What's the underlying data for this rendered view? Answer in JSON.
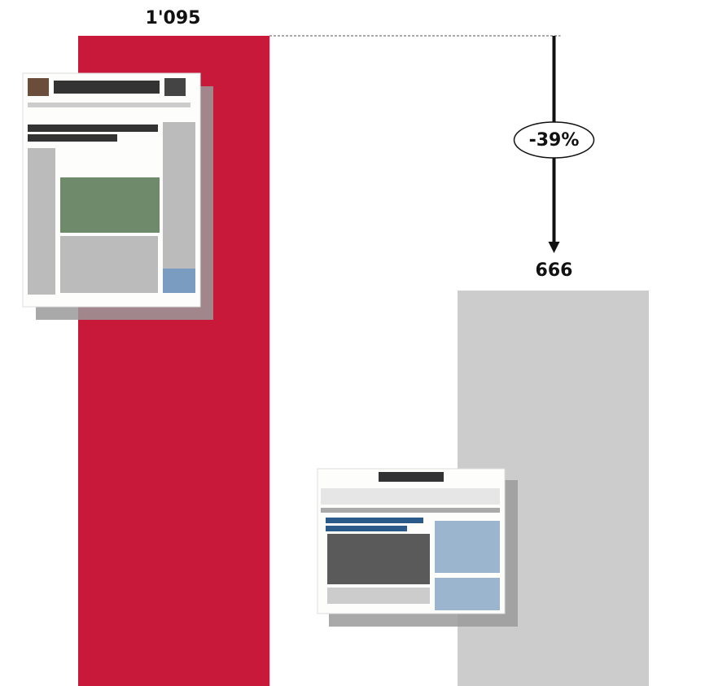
{
  "chart_data": {
    "type": "bar",
    "categories": [
      null,
      null
    ],
    "values": [
      1095,
      666
    ],
    "value_labels": [
      "1'095",
      "666"
    ],
    "colors": [
      "#c8193a",
      "#cccccc"
    ],
    "annotation": "-39%"
  }
}
